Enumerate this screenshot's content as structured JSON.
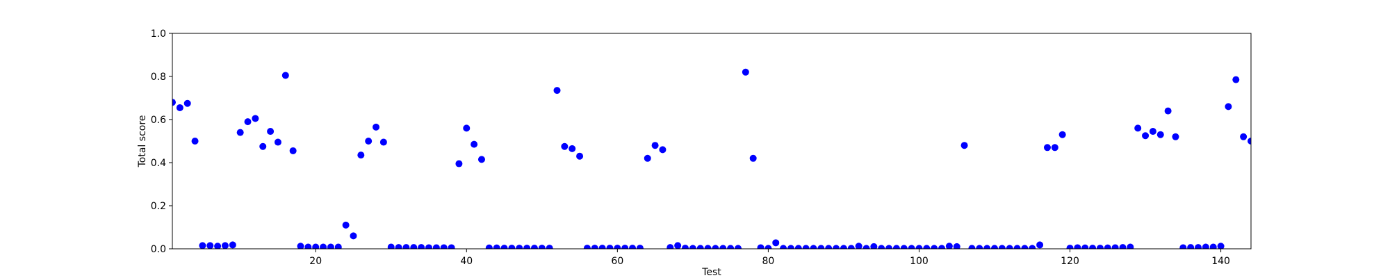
{
  "chart_data": {
    "type": "scatter",
    "xlabel": "Test",
    "ylabel": "Total score",
    "xlim": [
      1,
      144
    ],
    "ylim": [
      0.0,
      1.0
    ],
    "xticks": [
      20,
      40,
      60,
      80,
      100,
      120,
      140
    ],
    "yticks": [
      0.0,
      0.2,
      0.4,
      0.6,
      0.8,
      1.0
    ],
    "xtick_labels": [
      "20",
      "40",
      "60",
      "80",
      "100",
      "120",
      "140"
    ],
    "ytick_labels": [
      "0.0",
      "0.2",
      "0.4",
      "0.6",
      "0.8",
      "1.0"
    ],
    "grid": false,
    "marker_color": "#0000ff",
    "x": [
      1,
      2,
      3,
      4,
      5,
      6,
      7,
      8,
      9,
      10,
      11,
      12,
      13,
      14,
      15,
      16,
      17,
      18,
      19,
      20,
      21,
      22,
      23,
      24,
      25,
      26,
      27,
      28,
      29,
      30,
      31,
      32,
      33,
      34,
      35,
      36,
      37,
      38,
      39,
      40,
      41,
      42,
      43,
      44,
      45,
      46,
      47,
      48,
      49,
      50,
      51,
      52,
      53,
      54,
      55,
      56,
      57,
      58,
      59,
      60,
      61,
      62,
      63,
      64,
      65,
      66,
      67,
      68,
      69,
      70,
      71,
      72,
      73,
      74,
      75,
      76,
      77,
      78,
      79,
      80,
      81,
      82,
      83,
      84,
      85,
      86,
      87,
      88,
      89,
      90,
      91,
      92,
      93,
      94,
      95,
      96,
      97,
      98,
      99,
      100,
      101,
      102,
      103,
      104,
      105,
      106,
      107,
      108,
      109,
      110,
      111,
      112,
      113,
      114,
      115,
      116,
      117,
      118,
      119,
      120,
      121,
      122,
      123,
      124,
      125,
      126,
      127,
      128,
      129,
      130,
      131,
      132,
      133,
      134,
      135,
      136,
      137,
      138,
      139,
      140,
      141,
      142,
      143,
      144
    ],
    "y": [
      0.68,
      0.655,
      0.675,
      0.5,
      0.015,
      0.015,
      0.012,
      0.015,
      0.018,
      0.54,
      0.59,
      0.605,
      0.475,
      0.545,
      0.495,
      0.805,
      0.455,
      0.012,
      0.008,
      0.008,
      0.008,
      0.008,
      0.008,
      0.11,
      0.06,
      0.435,
      0.5,
      0.565,
      0.495,
      0.008,
      0.006,
      0.006,
      0.006,
      0.006,
      0.005,
      0.005,
      0.005,
      0.005,
      0.395,
      0.56,
      0.485,
      0.415,
      0.004,
      0.004,
      0.003,
      0.003,
      0.003,
      0.003,
      0.003,
      0.003,
      0.003,
      0.735,
      0.475,
      0.465,
      0.43,
      0.003,
      0.003,
      0.003,
      0.003,
      0.003,
      0.003,
      0.003,
      0.003,
      0.42,
      0.48,
      0.46,
      0.006,
      0.015,
      0.003,
      0.002,
      0.002,
      0.002,
      0.002,
      0.002,
      0.002,
      0.002,
      0.82,
      0.42,
      0.005,
      0.002,
      0.028,
      0.002,
      0.002,
      0.002,
      0.002,
      0.002,
      0.002,
      0.002,
      0.002,
      0.002,
      0.002,
      0.012,
      0.002,
      0.01,
      0.002,
      0.002,
      0.002,
      0.002,
      0.002,
      0.002,
      0.002,
      0.002,
      0.002,
      0.012,
      0.01,
      0.48,
      0.002,
      0.002,
      0.002,
      0.002,
      0.002,
      0.002,
      0.002,
      0.002,
      0.002,
      0.018,
      0.47,
      0.47,
      0.53,
      0.003,
      0.005,
      0.004,
      0.003,
      0.003,
      0.004,
      0.005,
      0.006,
      0.008,
      0.56,
      0.525,
      0.545,
      0.53,
      0.64,
      0.52,
      0.005,
      0.006,
      0.006,
      0.008,
      0.008,
      0.012,
      0.66,
      0.785,
      0.52,
      0.5
    ]
  }
}
